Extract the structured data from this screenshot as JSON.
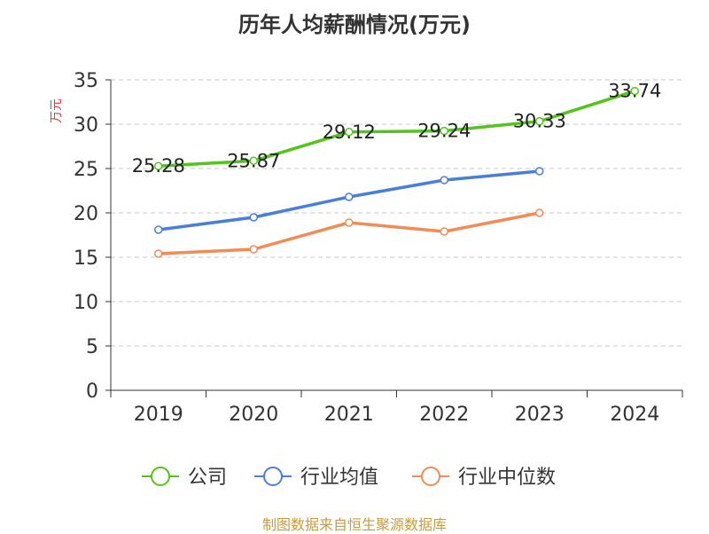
{
  "title": "历年人均薪酬情况(万元)",
  "source": "制图数据来自恒生聚源数据库",
  "chart_data": {
    "type": "line",
    "title": "历年人均薪酬情况(万元)",
    "ylabel": "万元",
    "xlabel": "",
    "ylim": [
      0,
      35
    ],
    "yticks": [
      "0",
      "5",
      "10",
      "15",
      "20",
      "25",
      "30",
      "35"
    ],
    "categories": [
      "2019",
      "2020",
      "2021",
      "2022",
      "2023",
      "2024"
    ],
    "grid": true,
    "legend_position": "bottom",
    "series": [
      {
        "name": "公司",
        "color": "#52c41a",
        "values": [
          25.28,
          25.87,
          29.12,
          29.24,
          30.33,
          33.74
        ],
        "labels": [
          "25.28",
          "25.87",
          "29.12",
          "29.24",
          "30.33",
          "33.74"
        ]
      },
      {
        "name": "行业均值",
        "color": "#4a7fd6",
        "values": [
          18.1,
          19.5,
          21.8,
          23.7,
          24.7,
          null
        ]
      },
      {
        "name": "行业中位数",
        "color": "#f28b54",
        "values": [
          15.4,
          15.9,
          18.9,
          17.9,
          20.0,
          null
        ]
      }
    ]
  }
}
